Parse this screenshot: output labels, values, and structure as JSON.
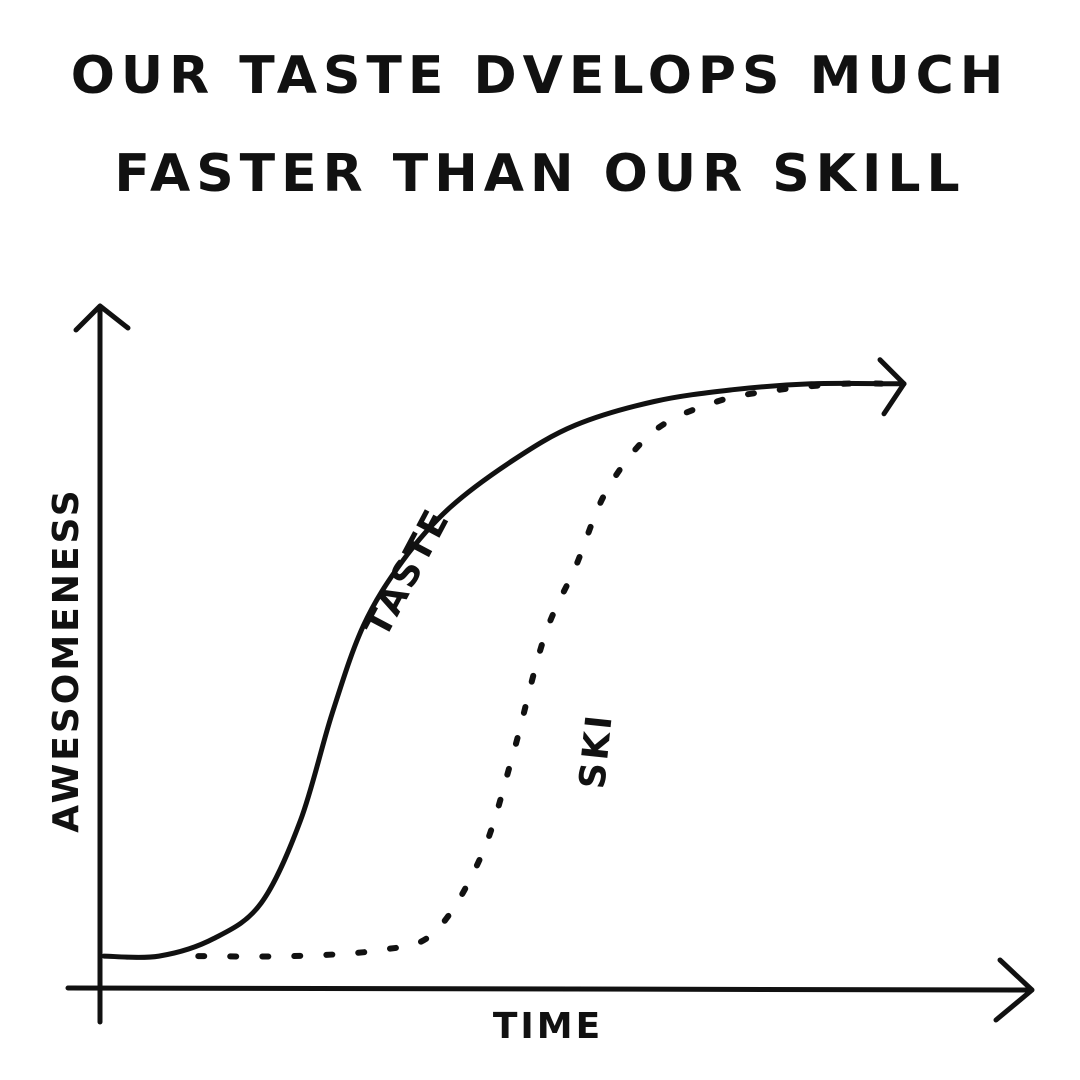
{
  "title": {
    "line1": "OUR TASTE DVELOPS MUCH",
    "line2": "FASTER THAN OUR SKILL"
  },
  "chart_data": {
    "type": "line",
    "title": "OUR TASTE DVELOPS MUCH FASTER THAN OUR SKILL",
    "xlabel": "TIME",
    "ylabel": "AWESOMENESS",
    "grid": false,
    "legend": "none",
    "xlim": [
      0,
      100
    ],
    "ylim": [
      0,
      100
    ],
    "series": [
      {
        "name": "TASTE",
        "style": "solid",
        "color": "#111111",
        "x": [
          0,
          7,
          14,
          20,
          25,
          29,
          33,
          38,
          44,
          52,
          60,
          70,
          80,
          90,
          100
        ],
        "y": [
          1,
          1,
          4,
          10,
          24,
          42,
          57,
          68,
          77,
          85,
          91,
          95,
          97,
          98,
          98
        ]
      },
      {
        "name": "SKI",
        "style": "dotted",
        "color": "#111111",
        "x": [
          12,
          24,
          35,
          42,
          48,
          52,
          56,
          60,
          64,
          70,
          78,
          86,
          94,
          100
        ],
        "y": [
          1,
          1,
          2,
          5,
          18,
          35,
          55,
          67,
          80,
          90,
          95,
          97,
          98,
          98
        ]
      }
    ]
  }
}
